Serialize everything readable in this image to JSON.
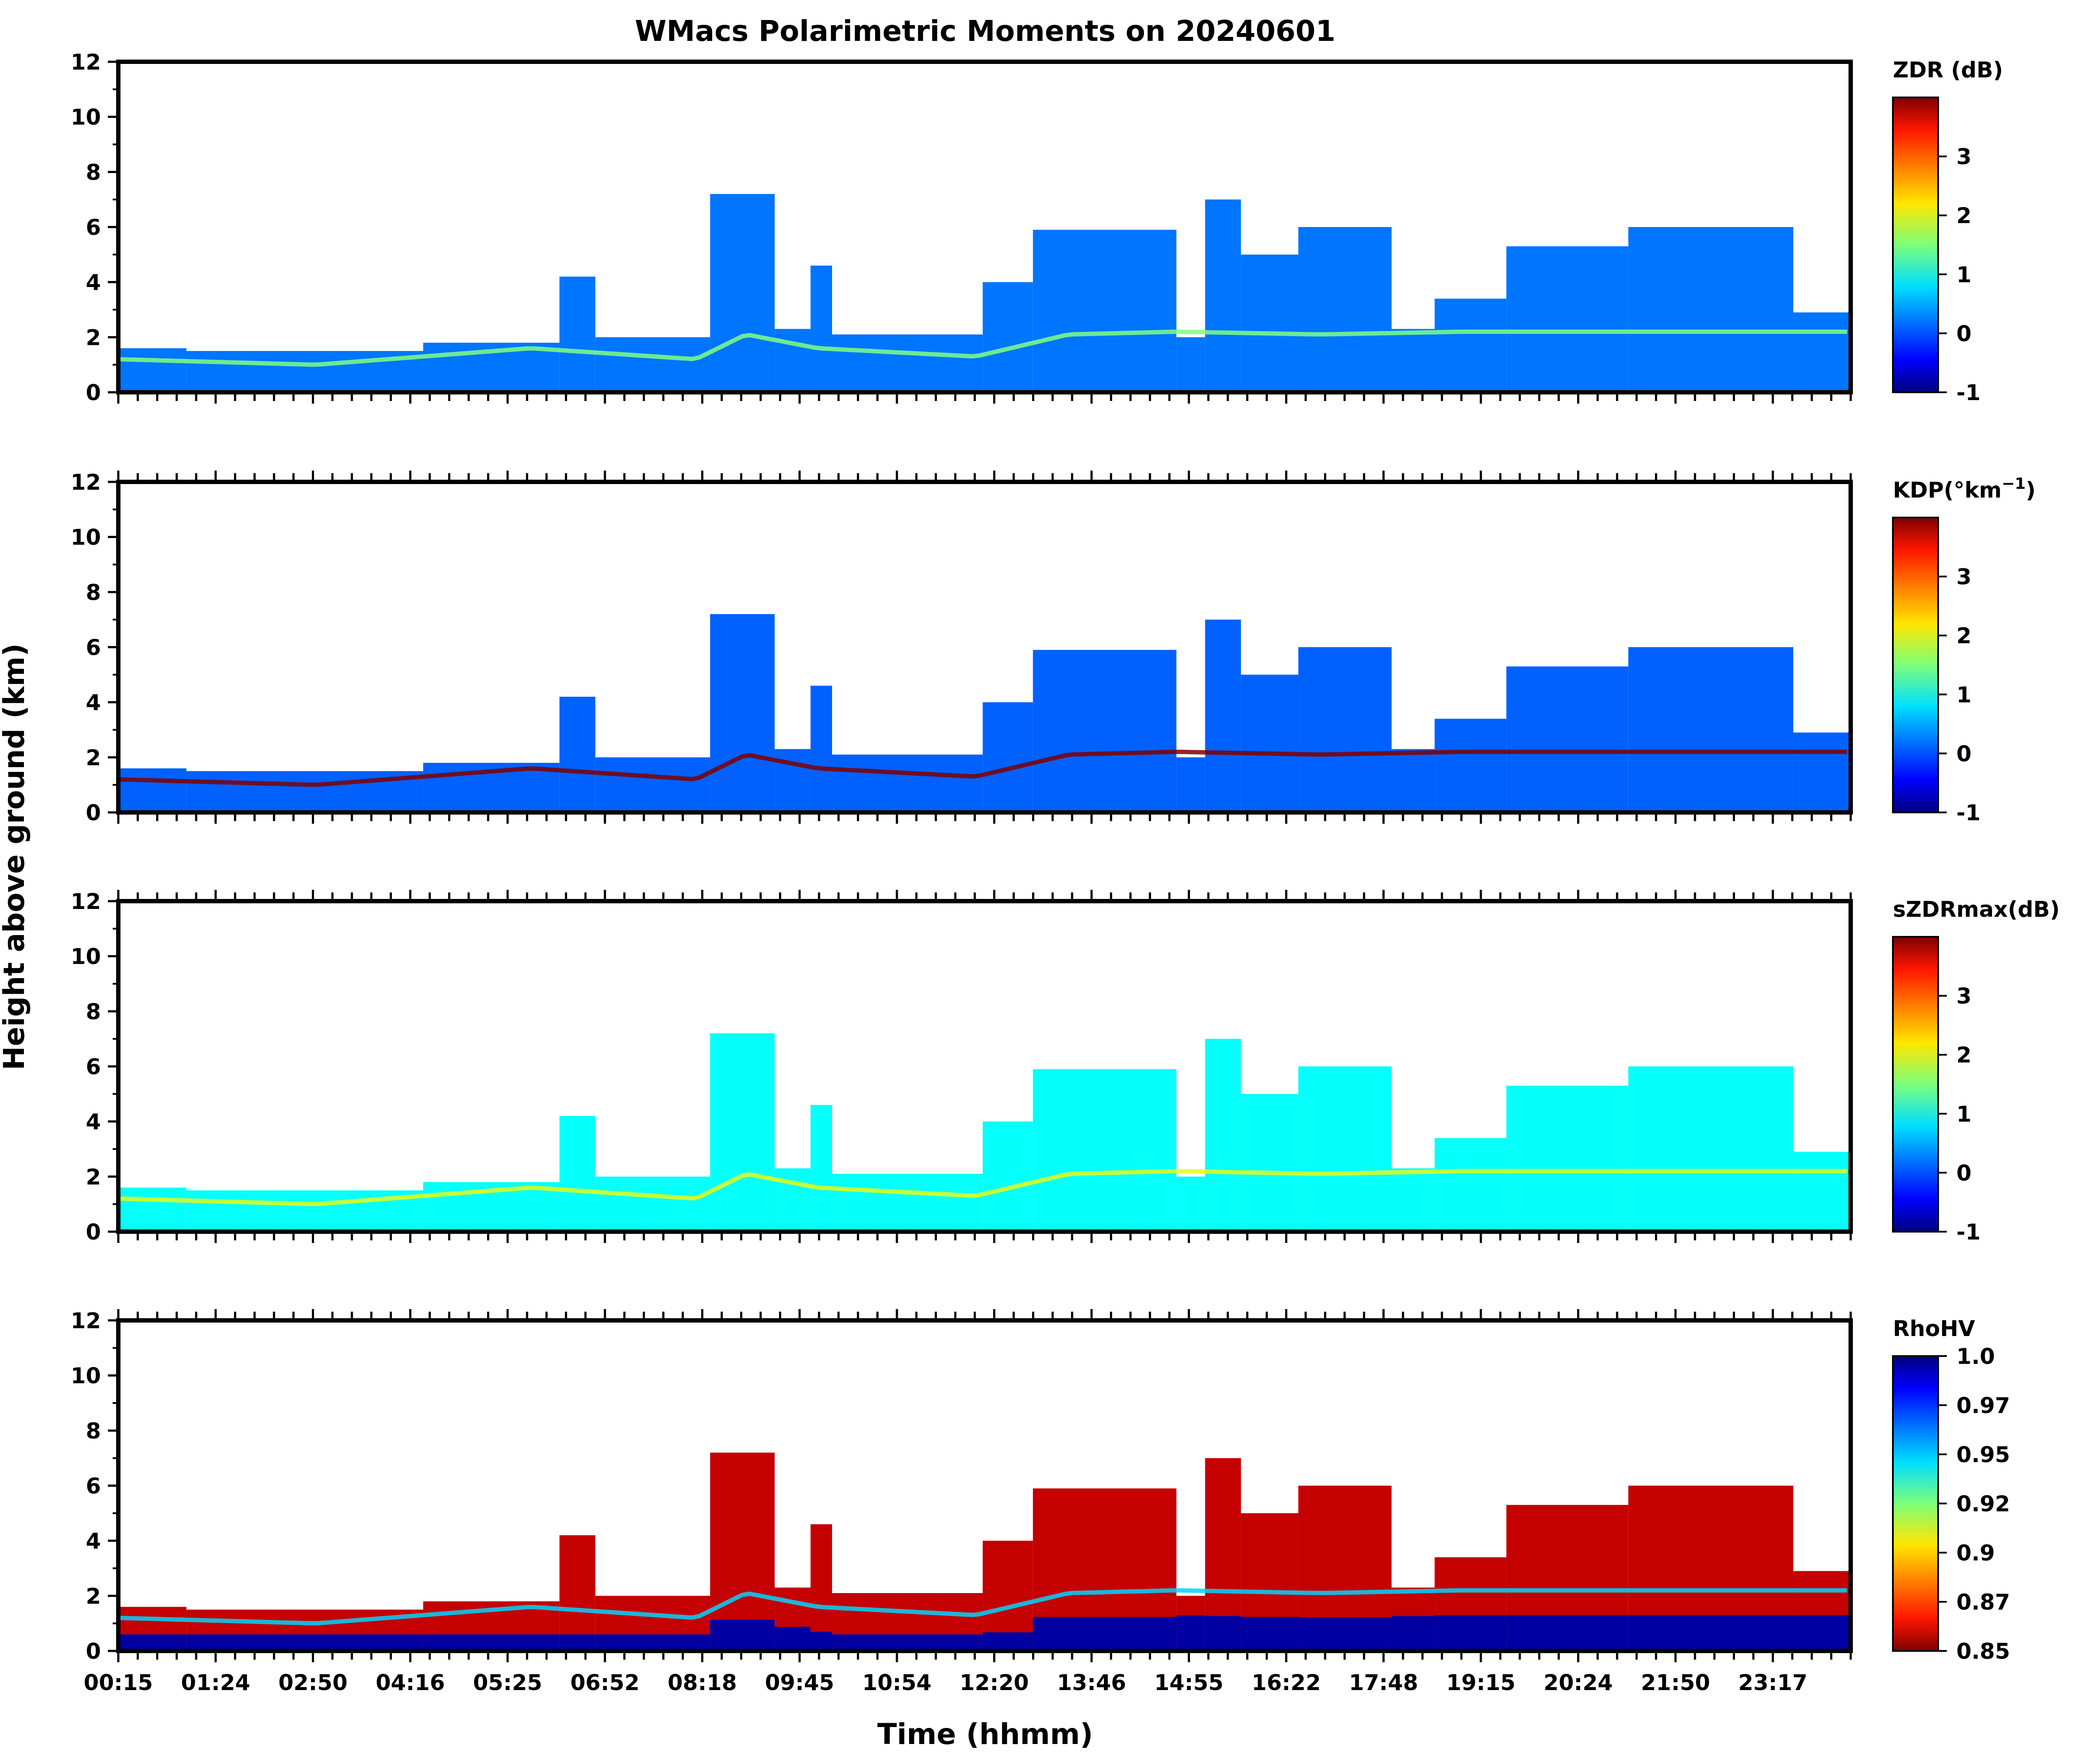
{
  "chart_data": {
    "type": "heatmap",
    "title": "WMacs Polarimetric Moments on 20240601",
    "xlabel": "Time (hhmm)",
    "ylabel": "Height above ground (km)",
    "x_ticks": [
      "00:15",
      "01:24",
      "02:50",
      "04:16",
      "05:25",
      "06:52",
      "08:18",
      "09:45",
      "10:54",
      "12:20",
      "13:46",
      "14:55",
      "16:22",
      "17:48",
      "19:15",
      "20:24",
      "21:50",
      "23:17"
    ],
    "x_range_hours": [
      0.25,
      24.4
    ],
    "ylim": [
      0,
      12
    ],
    "y_ticks": [
      0,
      2,
      4,
      6,
      8,
      10,
      12
    ],
    "cloud_segments": [
      {
        "start": 0.25,
        "end": 1.2,
        "top": 1.6
      },
      {
        "start": 1.2,
        "end": 4.5,
        "top": 1.5
      },
      {
        "start": 4.5,
        "end": 6.4,
        "top": 1.8
      },
      {
        "start": 6.4,
        "end": 6.9,
        "top": 4.2
      },
      {
        "start": 6.9,
        "end": 8.5,
        "top": 2.0
      },
      {
        "start": 8.5,
        "end": 9.4,
        "top": 7.2
      },
      {
        "start": 9.4,
        "end": 9.9,
        "top": 2.3
      },
      {
        "start": 9.9,
        "end": 10.2,
        "top": 4.6
      },
      {
        "start": 10.2,
        "end": 12.3,
        "top": 2.1
      },
      {
        "start": 12.3,
        "end": 13.0,
        "top": 4.0
      },
      {
        "start": 13.0,
        "end": 15.0,
        "top": 5.9
      },
      {
        "start": 15.0,
        "end": 15.4,
        "top": 2.0
      },
      {
        "start": 15.4,
        "end": 15.9,
        "top": 7.0
      },
      {
        "start": 15.9,
        "end": 16.7,
        "top": 5.0
      },
      {
        "start": 16.7,
        "end": 18.0,
        "top": 6.0
      },
      {
        "start": 18.0,
        "end": 18.6,
        "top": 2.3
      },
      {
        "start": 18.6,
        "end": 19.6,
        "top": 3.4
      },
      {
        "start": 19.6,
        "end": 21.3,
        "top": 5.3
      },
      {
        "start": 21.3,
        "end": 23.6,
        "top": 6.0
      },
      {
        "start": 23.6,
        "end": 24.4,
        "top": 2.9
      }
    ],
    "melting_layer_km": [
      {
        "t": 0.25,
        "h": 1.2
      },
      {
        "t": 3.0,
        "h": 1.0
      },
      {
        "t": 6.0,
        "h": 1.6
      },
      {
        "t": 8.3,
        "h": 1.2
      },
      {
        "t": 9.0,
        "h": 2.1
      },
      {
        "t": 10.0,
        "h": 1.6
      },
      {
        "t": 12.2,
        "h": 1.3
      },
      {
        "t": 13.5,
        "h": 2.1
      },
      {
        "t": 15.0,
        "h": 2.2
      },
      {
        "t": 17.0,
        "h": 2.1
      },
      {
        "t": 19.0,
        "h": 2.2
      },
      {
        "t": 22.0,
        "h": 2.2
      },
      {
        "t": 24.4,
        "h": 2.2
      }
    ],
    "panels": [
      {
        "colorbar_label": "ZDR (dB)",
        "colorbar_ticks": [
          "3",
          "2",
          "1",
          "0",
          "-1"
        ],
        "vmin": -1,
        "vmax": 4,
        "colormap": "jet",
        "dominant_value": 0.2,
        "melting_value": 1.5
      },
      {
        "colorbar_label": "KDP(°km",
        "colorbar_label_sup": "−1",
        "colorbar_label_end": ")",
        "colorbar_ticks": [
          "3",
          "2",
          "1",
          "0",
          "-1"
        ],
        "vmin": -1,
        "vmax": 4,
        "colormap": "jet",
        "dominant_value": 0.1,
        "melting_value": 4.0
      },
      {
        "colorbar_label": "sZDRmax(dB)",
        "colorbar_ticks": [
          "3",
          "2",
          "1",
          "0",
          "-1"
        ],
        "vmin": -1,
        "vmax": 4,
        "colormap": "jet",
        "dominant_value": 0.9,
        "melting_value": 2.0
      },
      {
        "colorbar_label": "RhoHV",
        "colorbar_ticks": [
          "1.0",
          "0.97",
          "0.95",
          "0.92",
          "0.9",
          "0.87",
          "0.85"
        ],
        "vmin": 0.85,
        "vmax": 1.0,
        "colormap": "jet_r",
        "dominant_value": 0.86,
        "melting_value": 0.95
      }
    ]
  }
}
